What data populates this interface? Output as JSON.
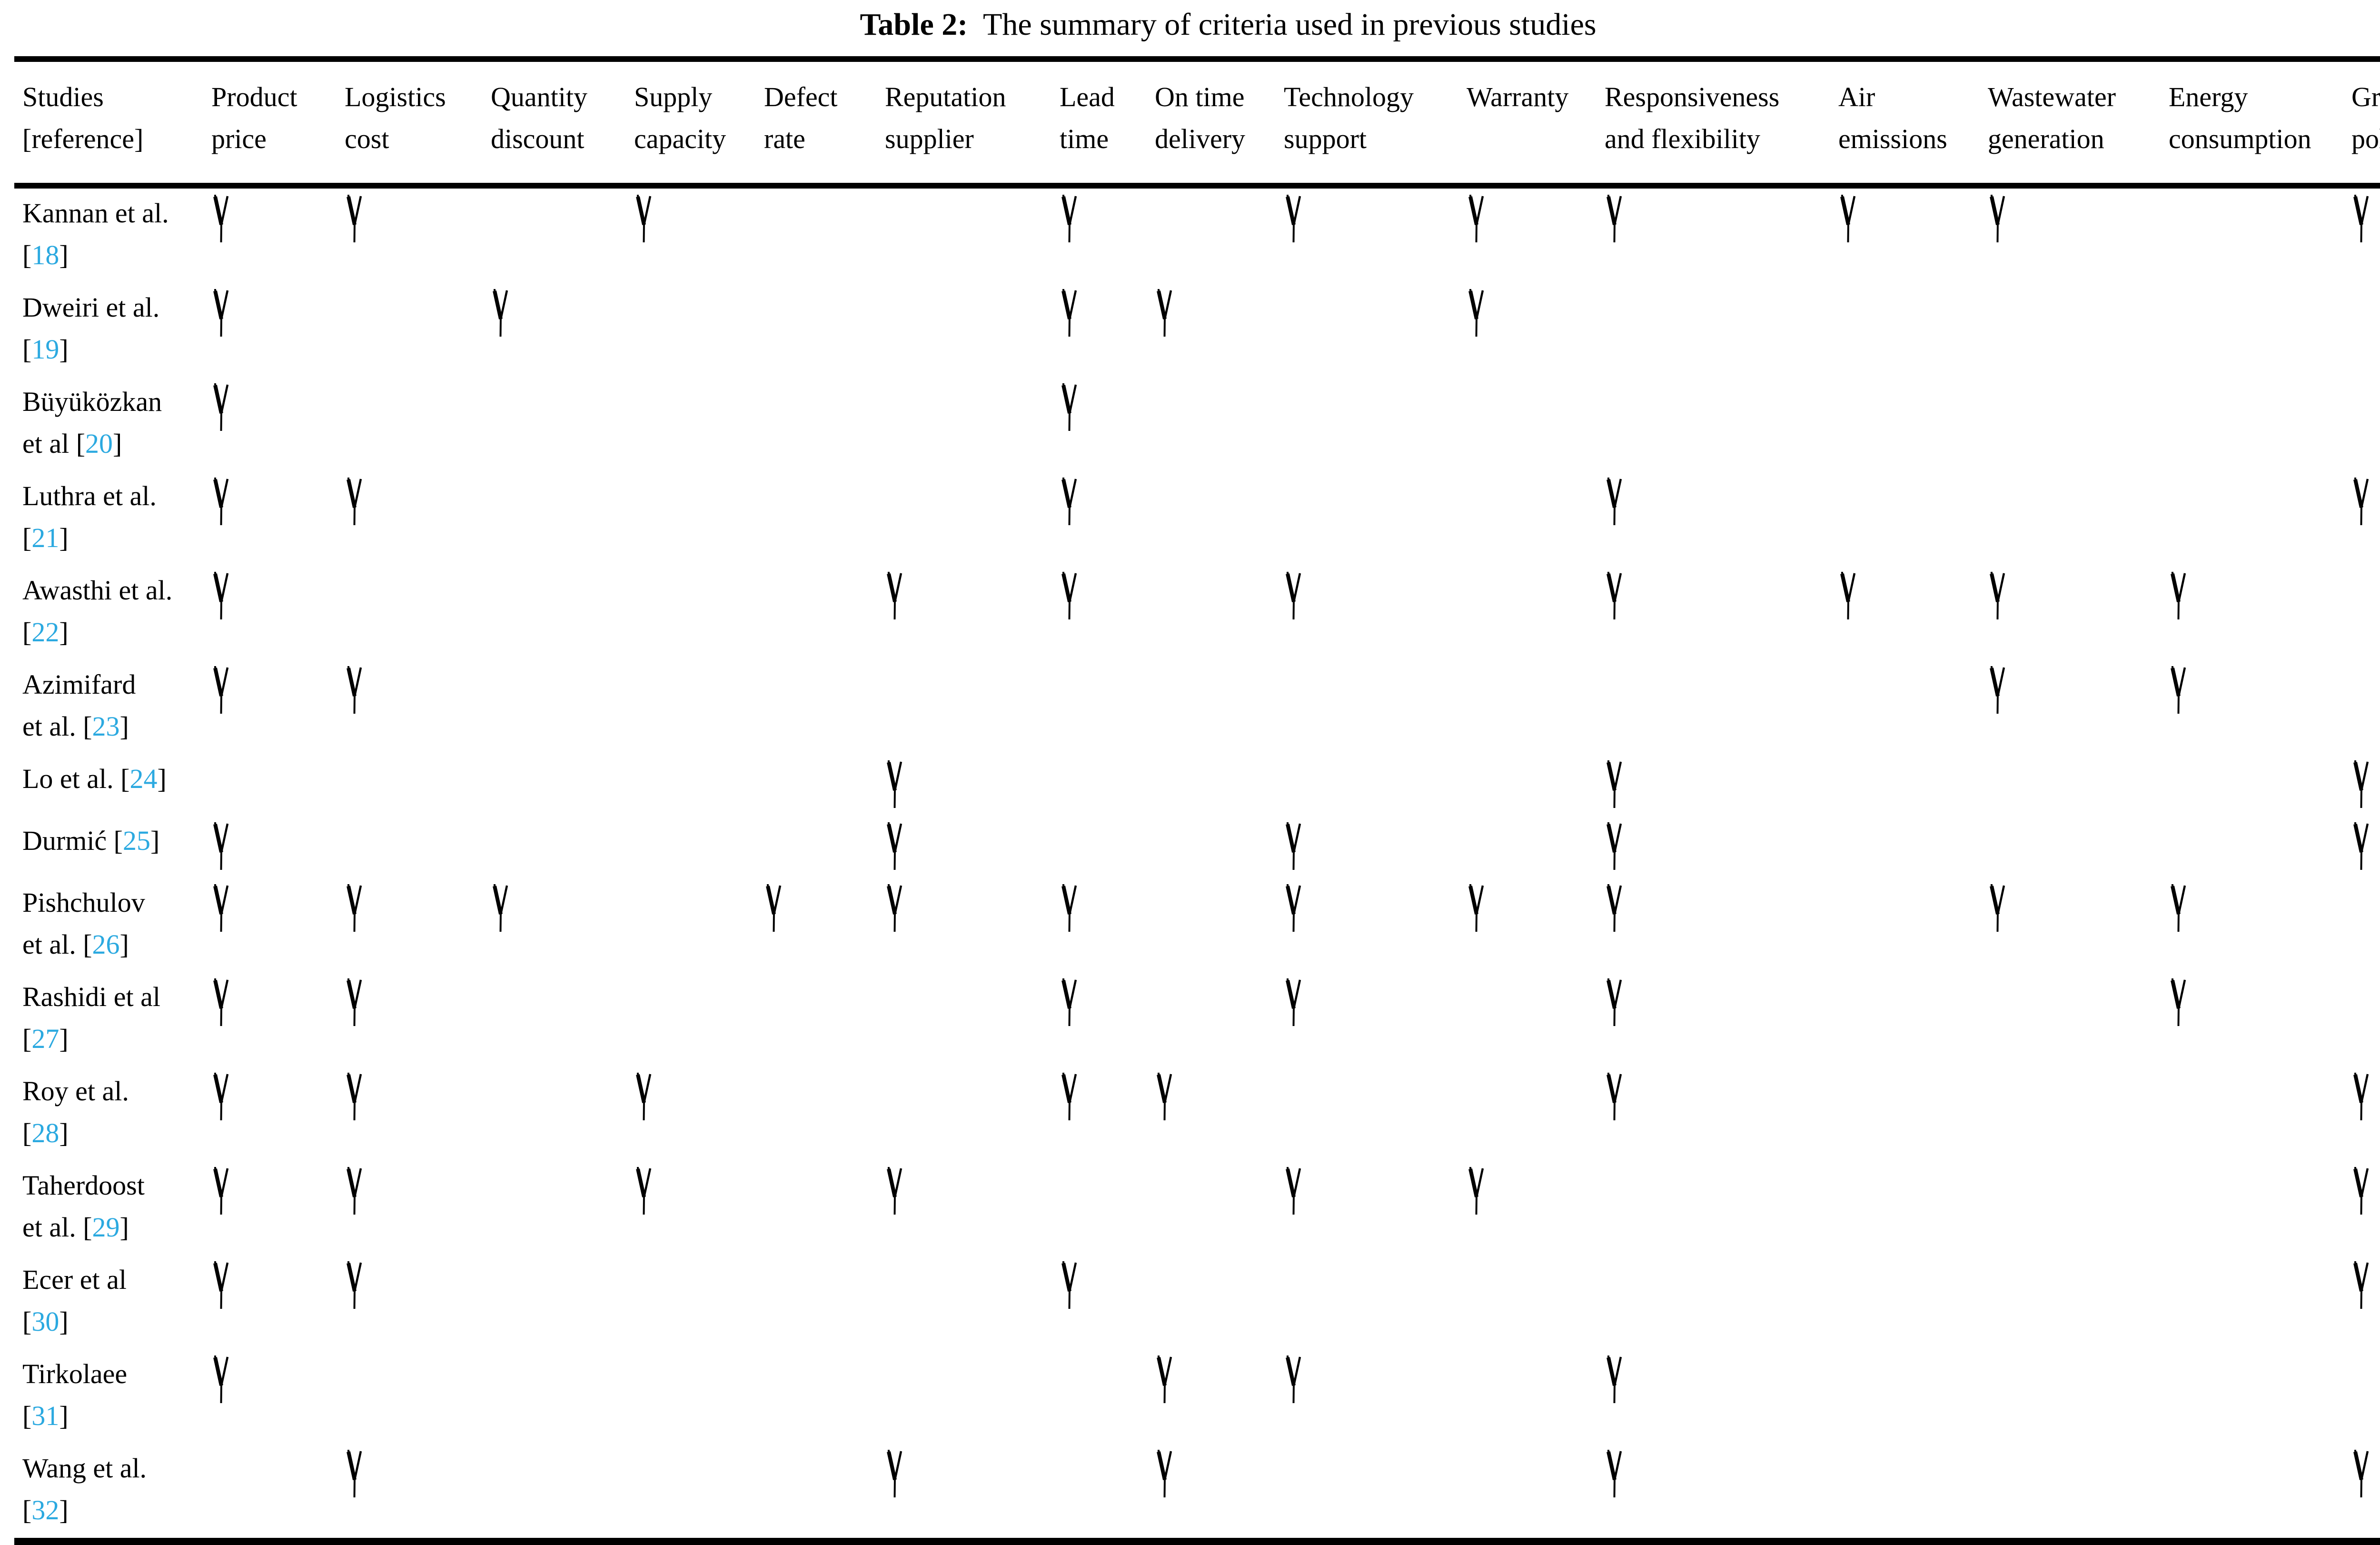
{
  "page": {
    "background": "#ffffff",
    "link_color": "#2BA9E0",
    "text_color": "#000000"
  },
  "title": {
    "label": "Table 2:",
    "text": "The summary of criteria used in previous studies"
  },
  "table": {
    "check_symbol_name": "check-mark",
    "columns": [
      {
        "id": "studies",
        "line1": "Studies",
        "line2": "[reference]"
      },
      {
        "id": "product_price",
        "line1": "Product",
        "line2": "price"
      },
      {
        "id": "logistics_cost",
        "line1": "Logistics",
        "line2": "cost"
      },
      {
        "id": "quantity_discount",
        "line1": "Quantity",
        "line2": "discount"
      },
      {
        "id": "supply_capacity",
        "line1": "Supply",
        "line2": "capacity"
      },
      {
        "id": "defect_rate",
        "line1": "Defect",
        "line2": "rate"
      },
      {
        "id": "reputation_supplier",
        "line1": "Reputation",
        "line2": "supplier"
      },
      {
        "id": "lead_time",
        "line1": "Lead",
        "line2": "time"
      },
      {
        "id": "on_time_delivery",
        "line1": "On time",
        "line2": "delivery"
      },
      {
        "id": "technology_support",
        "line1": "Technology",
        "line2": "support"
      },
      {
        "id": "warranty",
        "line1": "Warranty",
        "line2": ""
      },
      {
        "id": "responsiveness_flexibility",
        "line1": "Responsiveness",
        "line2": "and flexibility"
      },
      {
        "id": "air_emissions",
        "line1": "Air",
        "line2": "emissions"
      },
      {
        "id": "wastewater_generation",
        "line1": "Wastewater",
        "line2": "generation"
      },
      {
        "id": "energy_consumption",
        "line1": "Energy",
        "line2": "consumption"
      },
      {
        "id": "green_policies",
        "line1": "Green",
        "line2": "policies"
      }
    ],
    "rows": [
      {
        "pre": "Kannan et al.\n",
        "ref": "18",
        "checks": [
          1,
          1,
          0,
          1,
          0,
          0,
          1,
          0,
          1,
          1,
          1,
          1,
          1,
          0,
          1
        ]
      },
      {
        "pre": "Dweiri et al.\n",
        "ref": "19",
        "checks": [
          1,
          0,
          1,
          0,
          0,
          0,
          1,
          1,
          0,
          1,
          0,
          0,
          0,
          0,
          0
        ]
      },
      {
        "pre": "Büyüközkan\net al ",
        "ref": "20",
        "checks": [
          1,
          0,
          0,
          0,
          0,
          0,
          1,
          0,
          0,
          0,
          0,
          0,
          0,
          0,
          0
        ]
      },
      {
        "pre": "Luthra et al.\n",
        "ref": "21",
        "checks": [
          1,
          1,
          0,
          0,
          0,
          0,
          1,
          0,
          0,
          0,
          1,
          0,
          0,
          0,
          1
        ]
      },
      {
        "pre": "Awasthi et al.\n",
        "ref": "22",
        "checks": [
          1,
          0,
          0,
          0,
          0,
          1,
          1,
          0,
          1,
          0,
          1,
          1,
          1,
          1,
          0
        ]
      },
      {
        "pre": "Azimifard\net al. ",
        "ref": "23",
        "checks": [
          1,
          1,
          0,
          0,
          0,
          0,
          0,
          0,
          0,
          0,
          0,
          0,
          1,
          1,
          0
        ]
      },
      {
        "pre": "Lo et al. ",
        "ref": "24",
        "checks": [
          0,
          0,
          0,
          0,
          0,
          1,
          0,
          0,
          0,
          0,
          1,
          0,
          0,
          0,
          1
        ]
      },
      {
        "pre": "Durmić ",
        "ref": "25",
        "checks": [
          1,
          0,
          0,
          0,
          0,
          1,
          0,
          0,
          1,
          0,
          1,
          0,
          0,
          0,
          1
        ]
      },
      {
        "pre": "Pishchulov\net al. ",
        "ref": "26",
        "checks": [
          1,
          1,
          1,
          0,
          1,
          1,
          1,
          0,
          1,
          1,
          1,
          0,
          1,
          1,
          0
        ]
      },
      {
        "pre": "Rashidi et al\n",
        "ref": "27",
        "checks": [
          1,
          1,
          0,
          0,
          0,
          0,
          1,
          0,
          1,
          0,
          1,
          0,
          0,
          1,
          0
        ]
      },
      {
        "pre": "Roy et al.\n",
        "ref": "28",
        "checks": [
          1,
          1,
          0,
          1,
          0,
          0,
          1,
          1,
          0,
          0,
          1,
          0,
          0,
          0,
          1
        ]
      },
      {
        "pre": "Taherdoost\net al. ",
        "ref": "29",
        "checks": [
          1,
          1,
          0,
          1,
          0,
          1,
          0,
          0,
          1,
          1,
          0,
          0,
          0,
          0,
          1
        ]
      },
      {
        "pre": "Ecer et al\n",
        "ref": "30",
        "checks": [
          1,
          1,
          0,
          0,
          0,
          0,
          1,
          0,
          0,
          0,
          0,
          0,
          0,
          0,
          1
        ]
      },
      {
        "pre": "Tirkolaee\n",
        "ref": "31",
        "checks": [
          1,
          0,
          0,
          0,
          0,
          0,
          0,
          1,
          1,
          0,
          1,
          0,
          0,
          0,
          0
        ]
      },
      {
        "pre": "Wang et al.\n",
        "ref": "32",
        "checks": [
          0,
          1,
          0,
          0,
          0,
          1,
          0,
          1,
          0,
          0,
          1,
          0,
          0,
          0,
          1
        ]
      }
    ]
  }
}
